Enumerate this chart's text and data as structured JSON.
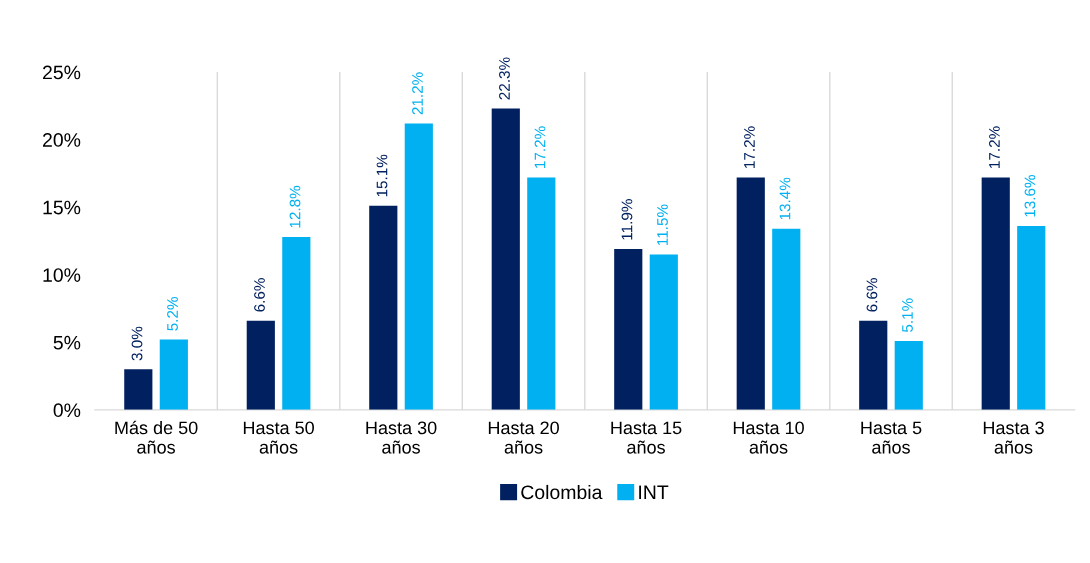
{
  "chart_data": {
    "type": "bar",
    "categories": [
      "Más de 50\naños",
      "Hasta 50\naños",
      "Hasta 30\naños",
      "Hasta 20\naños",
      "Hasta 15\naños",
      "Hasta 10\naños",
      "Hasta 5\naños",
      "Hasta 3\naños"
    ],
    "series": [
      {
        "name": "Colombia",
        "color": "#002060",
        "values": [
          3.0,
          6.6,
          15.1,
          22.3,
          11.9,
          17.2,
          6.6,
          17.2
        ],
        "value_labels": [
          "3.0%",
          "6.6%",
          "15.1%",
          "22.3%",
          "11.9%",
          "17.2%",
          "6.6%",
          "17.2%"
        ]
      },
      {
        "name": "INT",
        "color": "#00b0f0",
        "values": [
          5.2,
          12.8,
          21.2,
          17.2,
          11.5,
          13.4,
          5.1,
          13.6
        ],
        "value_labels": [
          "5.2%",
          "12.8%",
          "21.2%",
          "17.2%",
          "11.5%",
          "13.4%",
          "5.1%",
          "13.6%"
        ]
      }
    ],
    "ylim": [
      0,
      25
    ],
    "yticks": [
      {
        "value": 0,
        "label": "0%"
      },
      {
        "value": 5,
        "label": "5%"
      },
      {
        "value": 10,
        "label": "10%"
      },
      {
        "value": 15,
        "label": "15%"
      },
      {
        "value": 20,
        "label": "20%"
      },
      {
        "value": 25,
        "label": "25%"
      }
    ],
    "grid": "x",
    "legend": "bottom"
  }
}
